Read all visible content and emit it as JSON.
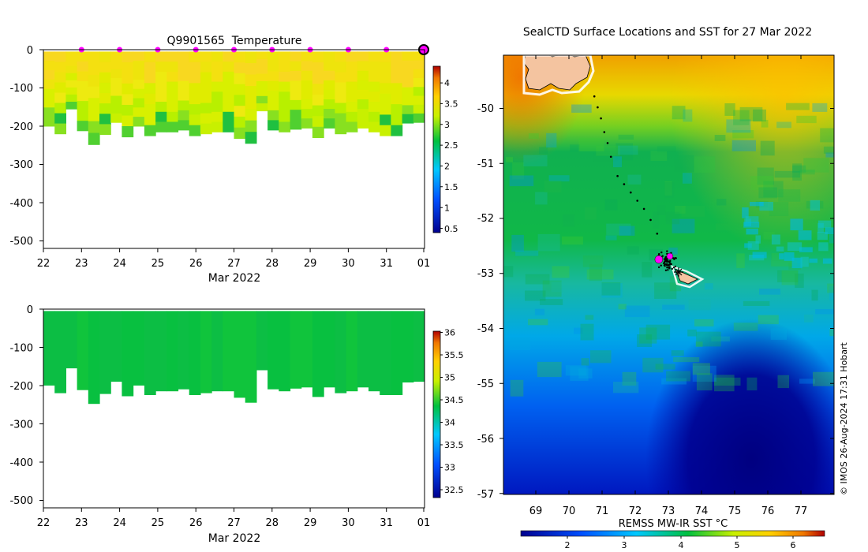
{
  "chart_data": [
    {
      "type": "heatmap",
      "id": "temperature-profile",
      "title": "Q9901565  Temperature",
      "xlabel": "Mar 2022",
      "ylabel": "",
      "x_ticks": [
        "22",
        "23",
        "24",
        "25",
        "26",
        "27",
        "28",
        "29",
        "30",
        "31",
        "01"
      ],
      "y_ticks": [
        "0",
        "-100",
        "-200",
        "-300",
        "-400",
        "-500"
      ],
      "xlim": [
        22,
        32
      ],
      "ylim": [
        -520,
        0
      ],
      "colorbar": {
        "ticks": [
          "0.5",
          "1",
          "1.5",
          "2",
          "2.5",
          "3",
          "3.5",
          "4"
        ],
        "range": [
          0.3,
          4.3
        ]
      },
      "profile_times": [
        22.1,
        22.4,
        22.7,
        23.0,
        23.3,
        23.6,
        23.9,
        24.2,
        24.5,
        24.8,
        25.1,
        25.4,
        25.7,
        26.0,
        26.3,
        26.6,
        26.9,
        27.2,
        27.5,
        27.8,
        28.1,
        28.4,
        28.7,
        29.0,
        29.3,
        29.6,
        29.9,
        30.2,
        30.5,
        30.8,
        31.1,
        31.4,
        31.7,
        32.0
      ],
      "profile_depths": [
        -200,
        -220,
        -155,
        -212,
        -248,
        -222,
        -190,
        -228,
        -200,
        -225,
        -215,
        -215,
        -210,
        -225,
        -220,
        -215,
        -215,
        -232,
        -245,
        -160,
        -210,
        -215,
        -208,
        -205,
        -230,
        -205,
        -220,
        -215,
        -205,
        -215,
        -225,
        -225,
        -192,
        -190
      ],
      "surface_markers_x": [
        23,
        24,
        25,
        26,
        27,
        28,
        29,
        30,
        31
      ],
      "current_marker_x": 32
    },
    {
      "type": "heatmap",
      "id": "salinity-profile",
      "title": "",
      "xlabel": "Mar 2022",
      "ylabel": "",
      "x_ticks": [
        "22",
        "23",
        "24",
        "25",
        "26",
        "27",
        "28",
        "29",
        "30",
        "31",
        "01"
      ],
      "y_ticks": [
        "0",
        "-100",
        "-200",
        "-300",
        "-400",
        "-500"
      ],
      "xlim": [
        22,
        32
      ],
      "ylim": [
        -520,
        0
      ],
      "colorbar": {
        "ticks": [
          "32.5",
          "33",
          "33.5",
          "34",
          "34.5",
          "35",
          "35.5",
          "36"
        ],
        "range": [
          32.25,
          36.2
        ]
      }
    },
    {
      "type": "heatmap",
      "id": "sst-map",
      "title": "SealCTD Surface Locations and SST for 27 Mar 2022",
      "x_ticks": [
        "69",
        "70",
        "71",
        "72",
        "73",
        "74",
        "75",
        "76",
        "77"
      ],
      "y_ticks": [
        "-50",
        "-51",
        "-52",
        "-53",
        "-54",
        "-55",
        "-56",
        "-57"
      ],
      "lon_range": [
        68.1,
        78.1
      ],
      "lat_range": [
        -57.0,
        -49.0
      ],
      "colorbar": {
        "label": "REMSS MW-IR SST °C",
        "ticks": [
          "2",
          "3",
          "4",
          "5",
          "6"
        ],
        "range": [
          1.0,
          6.6
        ]
      },
      "track_lon": [
        70.85,
        70.95,
        71.05,
        71.15,
        71.25,
        71.35,
        71.55,
        71.75,
        71.95,
        72.15,
        72.35,
        72.55,
        72.75
      ],
      "track_lat": [
        -49.75,
        -49.95,
        -50.15,
        -50.4,
        -50.6,
        -50.85,
        -51.2,
        -51.35,
        -51.5,
        -51.65,
        -51.8,
        -52.0,
        -52.25
      ],
      "last_location_lon": 72.8,
      "last_location_lat": -52.72,
      "credit": "© IMOS 26-Aug-2024 17:31 Hobart"
    }
  ]
}
